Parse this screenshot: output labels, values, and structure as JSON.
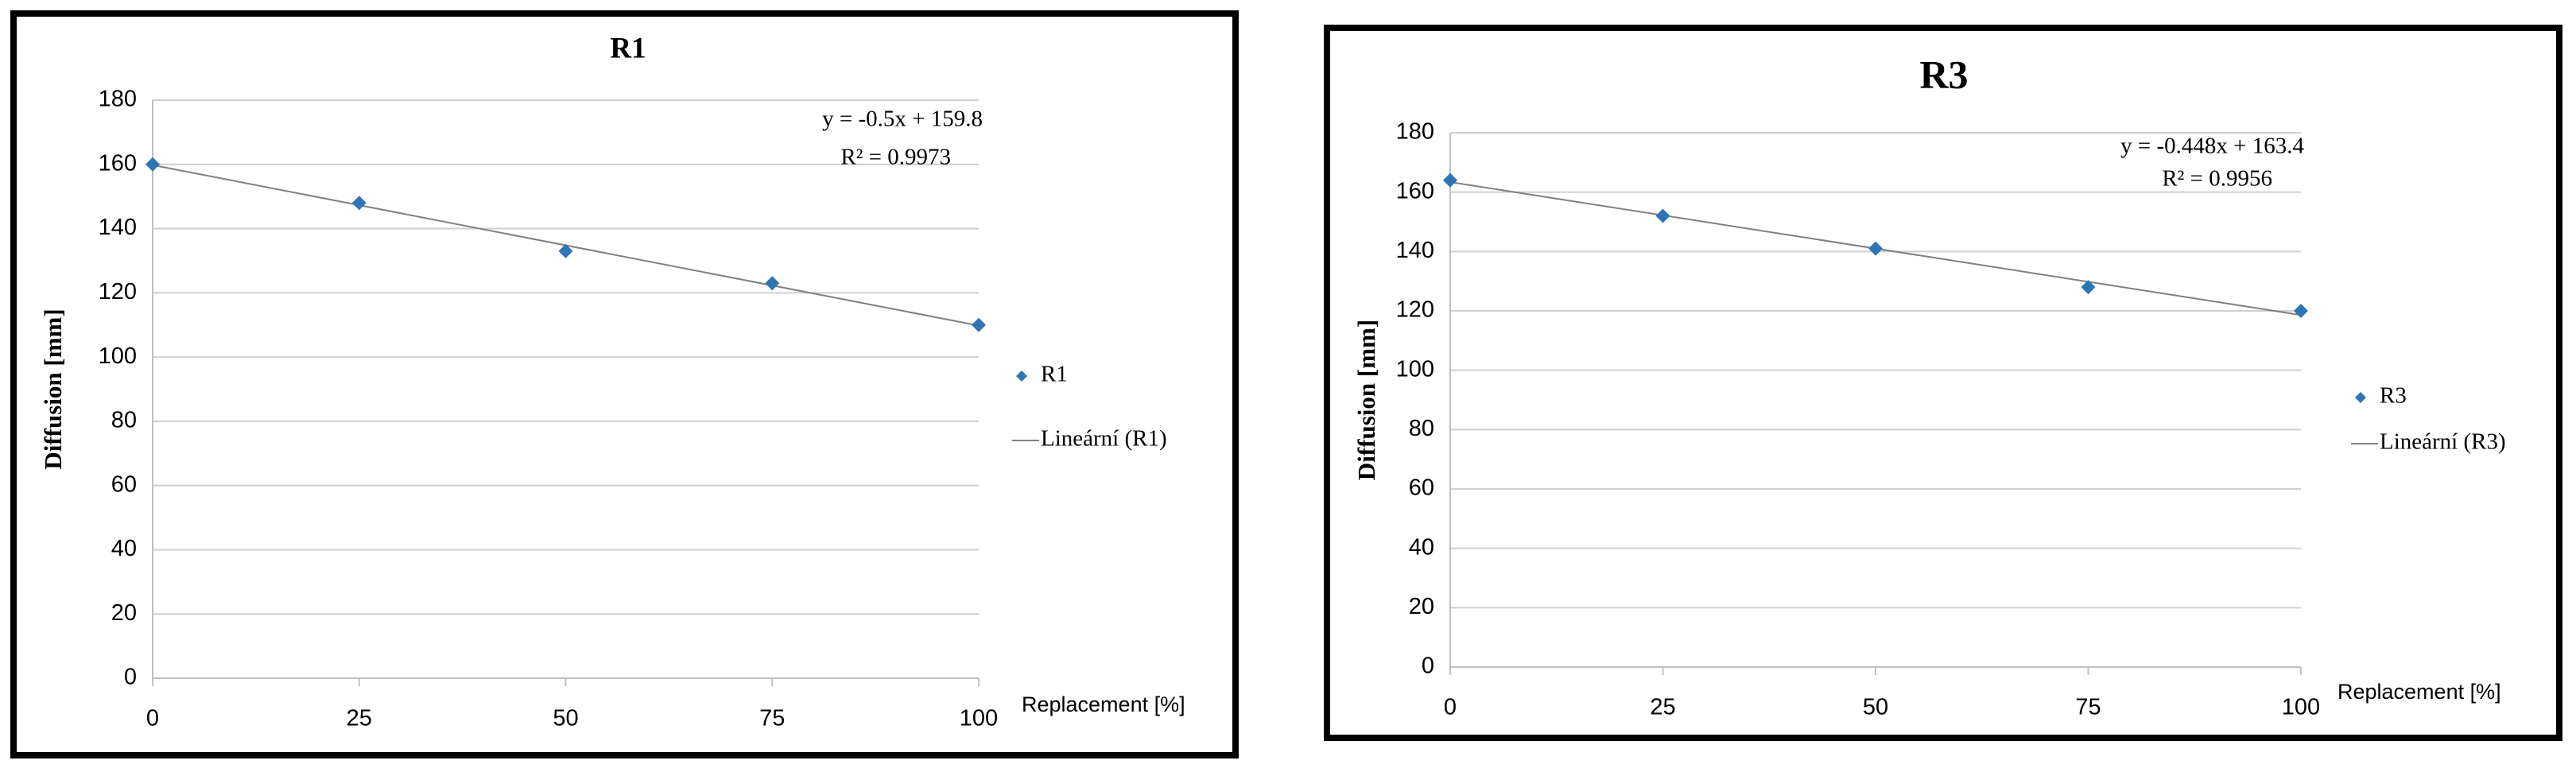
{
  "chart_data": [
    {
      "type": "scatter",
      "title": "R1",
      "xlabel": "Replacement [%]",
      "ylabel": "Diffusion [mm]",
      "x": [
        0,
        25,
        50,
        75,
        100
      ],
      "series": [
        {
          "name": "R1",
          "color": "#2e75b6",
          "values": [
            160,
            148,
            133,
            123,
            110
          ]
        }
      ],
      "trendline": {
        "name": "Lineární (R1)",
        "color": "#808080",
        "equation": "y = -0.5x + 159.8",
        "r2": "R² = 0.9973"
      },
      "xlim": [
        0,
        100
      ],
      "ylim": [
        0,
        180
      ],
      "xticks": [
        0,
        25,
        50,
        75,
        100
      ],
      "yticks": [
        0,
        20,
        40,
        60,
        80,
        100,
        120,
        140,
        160,
        180
      ],
      "grid": true
    },
    {
      "type": "scatter",
      "title": "R3",
      "xlabel": "Replacement [%]",
      "ylabel": "Diffusion [mm]",
      "x": [
        0,
        25,
        50,
        75,
        100
      ],
      "series": [
        {
          "name": "R3",
          "color": "#2e75b6",
          "values": [
            164,
            152,
            141,
            128,
            120
          ]
        }
      ],
      "trendline": {
        "name": "Lineární (R3)",
        "color": "#808080",
        "equation": "y = -0.448x + 163.4",
        "r2": "R² = 0.9956"
      },
      "xlim": [
        0,
        100
      ],
      "ylim": [
        0,
        180
      ],
      "xticks": [
        0,
        25,
        50,
        75,
        100
      ],
      "yticks": [
        0,
        20,
        40,
        60,
        80,
        100,
        120,
        140,
        160,
        180
      ],
      "grid": true
    }
  ]
}
